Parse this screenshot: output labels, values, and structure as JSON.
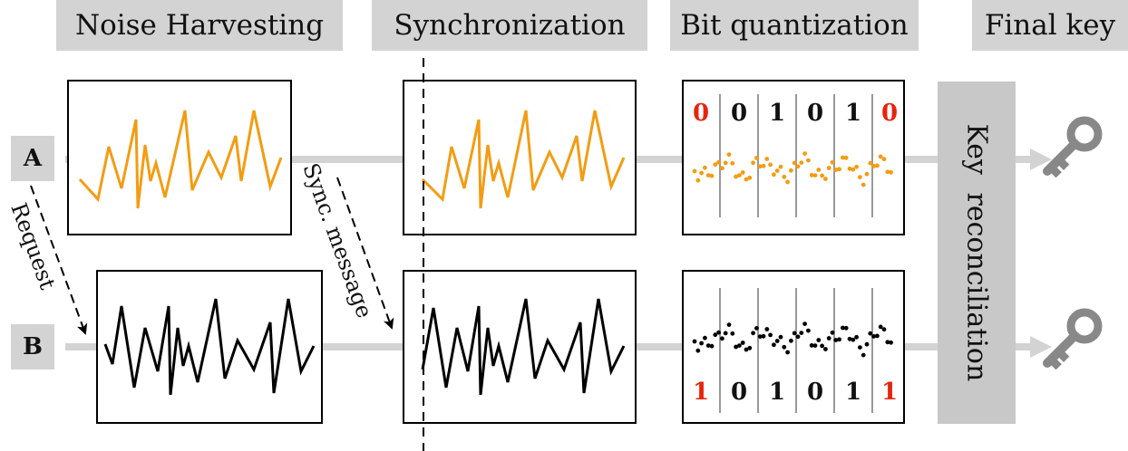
{
  "stages": {
    "noise_harvesting": "Noise Harvesting",
    "synchronization": "Synchronization",
    "bit_quantization": "Bit quantization",
    "final_key": "Final key"
  },
  "nodes": {
    "a": "A",
    "b": "B"
  },
  "messages": {
    "request": "Request",
    "sync": "Sync. message"
  },
  "reconciliation": "Key reconciliation",
  "bits_a": [
    "0",
    "0",
    "1",
    "0",
    "1",
    "0"
  ],
  "bits_b": [
    "1",
    "0",
    "1",
    "0",
    "1",
    "1"
  ],
  "bit_colors_a": [
    "#e8230c",
    "#111111",
    "#111111",
    "#111111",
    "#111111",
    "#e8230c"
  ],
  "bit_colors_b": [
    "#e8230c",
    "#111111",
    "#111111",
    "#111111",
    "#111111",
    "#e8230c"
  ],
  "colors": {
    "signal_a": "#f39c12",
    "signal_b": "#000000",
    "mismatch": "#e8230c",
    "key": "#888888",
    "line": "#d3d3d3"
  },
  "icons": {
    "key": "key-icon"
  }
}
